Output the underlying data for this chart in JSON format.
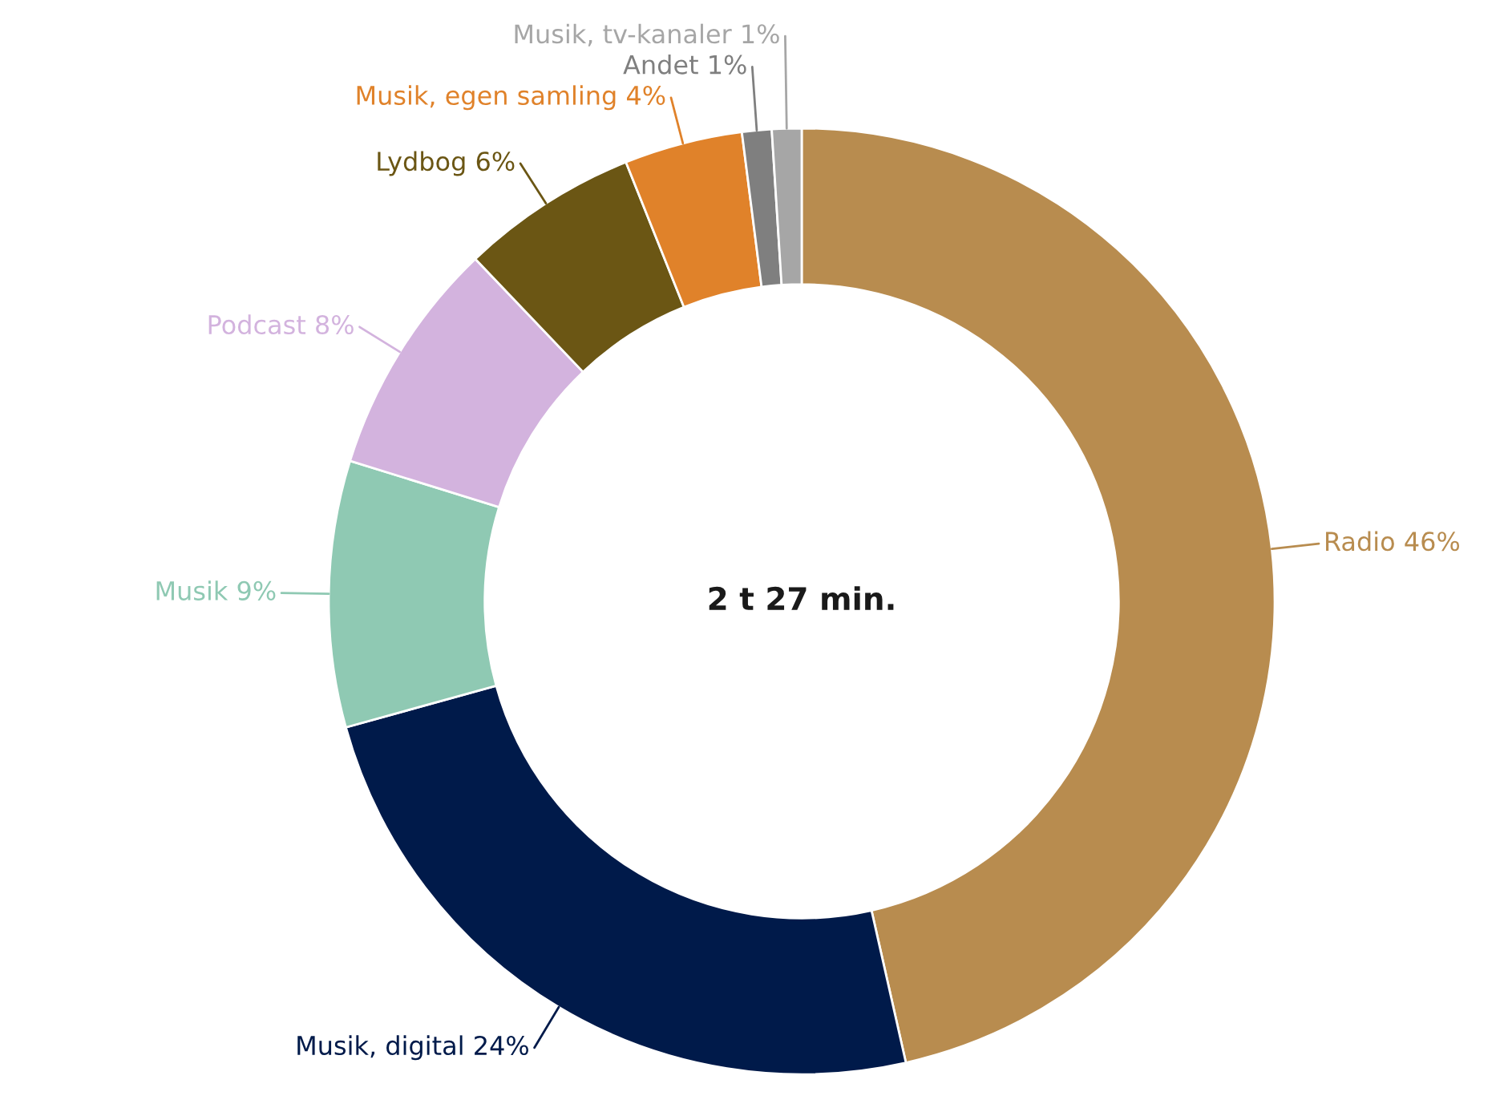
{
  "chart_data": {
    "type": "donut",
    "categories": [
      "Radio",
      "Musik, digital",
      "Musik",
      "Podcast",
      "Lydbog",
      "Musik, egen samling",
      "Andet",
      "Musik, tv-kanaler"
    ],
    "values": [
      46,
      24,
      9,
      8,
      6,
      4,
      1,
      1
    ],
    "value_labels": [
      "46%",
      "24%",
      "9%",
      "8%",
      "6%",
      "4%",
      "1%",
      "1%"
    ],
    "colors": [
      "#b88c4f",
      "#001a4a",
      "#8fc9b3",
      "#d3b3de",
      "#6b5614",
      "#e0822a",
      "#7f7f7f",
      "#a6a6a6"
    ],
    "annotations": [
      "2 t 27 min."
    ],
    "legend": false
  }
}
